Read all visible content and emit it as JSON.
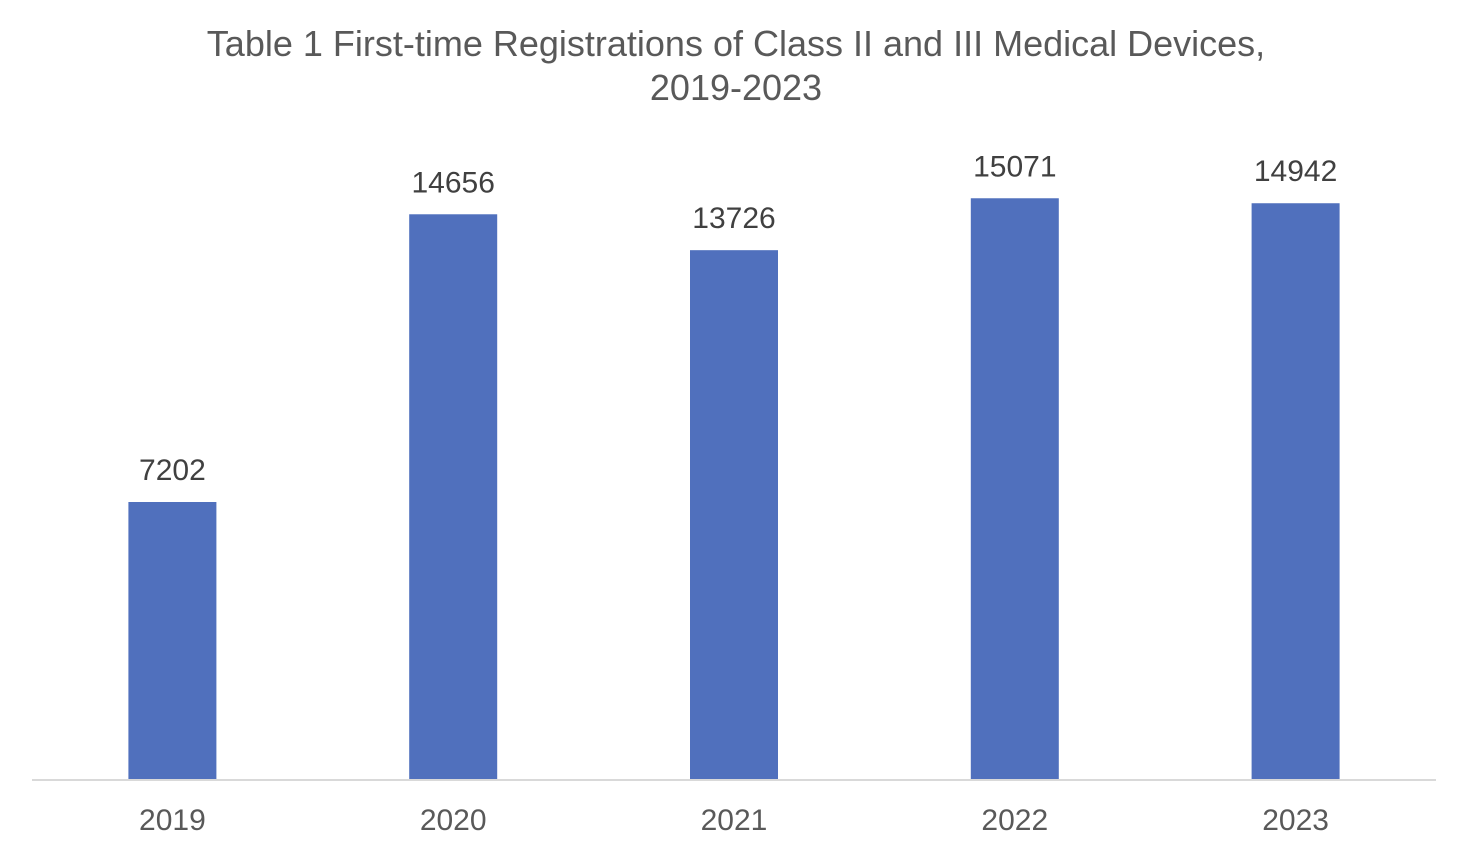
{
  "chart_data": {
    "type": "bar",
    "title_line1": "Table 1 First-time Registrations of Class II and III Medical Devices,",
    "title_line2": "2019-2023",
    "categories": [
      "2019",
      "2020",
      "2021",
      "2022",
      "2023"
    ],
    "values": [
      7202,
      14656,
      13726,
      15071,
      14942
    ],
    "xlabel": "",
    "ylabel": "",
    "ylim": [
      0,
      16000
    ],
    "grid": false,
    "legend": "none",
    "bar_color": "#5070BD",
    "axis_color": "#D9D9D9"
  }
}
